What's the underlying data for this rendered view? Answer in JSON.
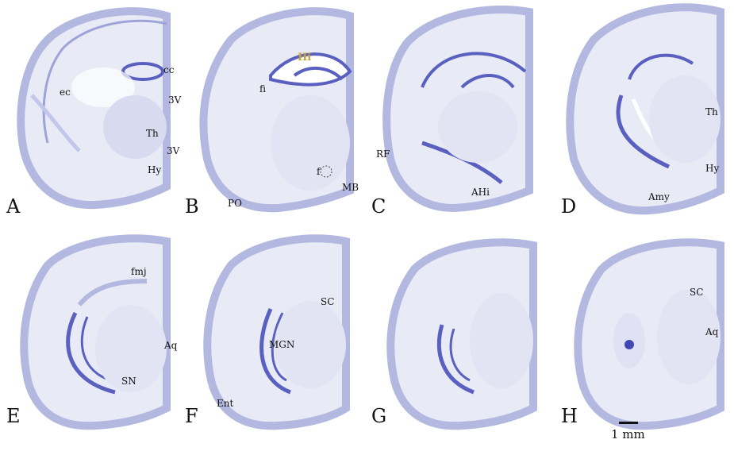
{
  "panels": [
    {
      "id": "A",
      "labels": {
        "ec": "ec",
        "cc": "cc",
        "v3a": "3V",
        "th": "Th",
        "v3b": "3V",
        "hy": "Hy"
      }
    },
    {
      "id": "B",
      "labels": {
        "hi": "Hi",
        "fi": "fi",
        "po": "PO",
        "f": "f",
        "mb": "MB"
      }
    },
    {
      "id": "C",
      "labels": {
        "rf": "RF",
        "ahi": "AHi"
      }
    },
    {
      "id": "D",
      "labels": {
        "th": "Th",
        "hy": "Hy",
        "amy": "Amy"
      }
    },
    {
      "id": "E",
      "labels": {
        "fmj": "fmj",
        "aq": "Aq",
        "sn": "SN"
      }
    },
    {
      "id": "F",
      "labels": {
        "sc": "SC",
        "mgn": "MGN",
        "ent": "Ent"
      }
    },
    {
      "id": "G",
      "labels": {}
    },
    {
      "id": "H",
      "labels": {
        "sc": "SC",
        "aq": "Aq"
      }
    }
  ],
  "scale": {
    "label": "1 mm"
  },
  "colors": {
    "tissue": "#e6e8f5",
    "cortex": "#b9bde3",
    "stain": "#4147b3",
    "ventricle": "#ffffff"
  }
}
